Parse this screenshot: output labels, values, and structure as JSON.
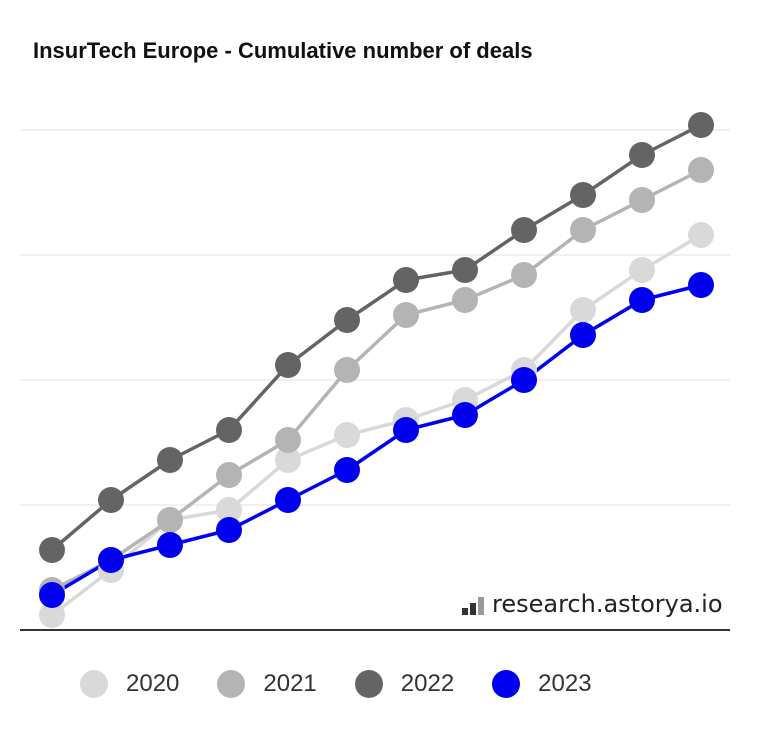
{
  "chart_data": {
    "type": "line",
    "title": "InsurTech Europe - Cumulative number of deals",
    "xlabel": "",
    "ylabel": "",
    "x": [
      1,
      2,
      3,
      4,
      5,
      6,
      7,
      8,
      9,
      10,
      11,
      12
    ],
    "ylim": [
      0,
      100
    ],
    "grid": true,
    "legend_position": "bottom",
    "series": [
      {
        "name": "2020",
        "color": "#d9d9d9",
        "values": [
          3,
          12,
          22,
          24,
          34,
          39,
          42,
          46,
          52,
          64,
          72,
          79
        ]
      },
      {
        "name": "2021",
        "color": "#b4b4b4",
        "values": [
          8,
          14,
          22,
          31,
          38,
          52,
          63,
          66,
          71,
          80,
          86,
          92
        ]
      },
      {
        "name": "2022",
        "color": "#646464",
        "values": [
          16,
          26,
          34,
          40,
          53,
          62,
          70,
          72,
          80,
          87,
          95,
          101
        ]
      },
      {
        "name": "2023",
        "color": "#0000ee",
        "values": [
          7,
          14,
          17,
          20,
          26,
          32,
          40,
          43,
          50,
          59,
          66,
          69
        ]
      }
    ]
  },
  "watermark": "research.astorya.io"
}
